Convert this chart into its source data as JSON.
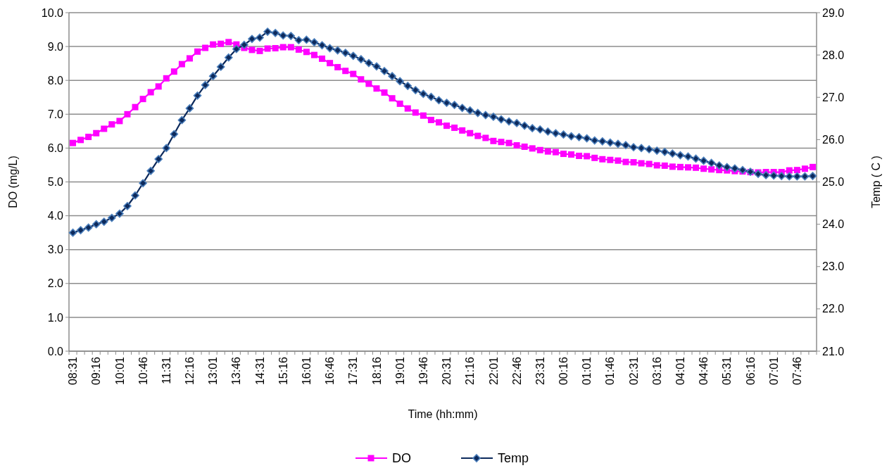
{
  "chart_data": {
    "type": "line",
    "xlabel": "Time (hh:mm)",
    "ylabel": "DO (mg/L)",
    "y2label": "Temp ( C )",
    "categories": [
      "08:31",
      null,
      null,
      "09:16",
      null,
      null,
      "10:01",
      null,
      null,
      "10:46",
      null,
      null,
      "11:31",
      null,
      null,
      "12:16",
      null,
      null,
      "13:01",
      null,
      null,
      "13:46",
      null,
      null,
      "14:31",
      null,
      null,
      "15:16",
      null,
      null,
      "16:01",
      null,
      null,
      "16:46",
      null,
      null,
      "17:31",
      null,
      null,
      "18:16",
      null,
      null,
      "19:01",
      null,
      null,
      "19:46",
      null,
      null,
      "20:31",
      null,
      null,
      "21:16",
      null,
      null,
      "22:01",
      null,
      null,
      "22:46",
      null,
      null,
      "23:31",
      null,
      null,
      "00:16",
      null,
      null,
      "01:01",
      null,
      null,
      "01:46",
      null,
      null,
      "02:31",
      null,
      null,
      "03:16",
      null,
      null,
      "04:01",
      null,
      null,
      "04:46",
      null,
      null,
      "05:31",
      null,
      null,
      "06:16",
      null,
      null,
      "07:01",
      null,
      null,
      "07:46",
      null,
      null
    ],
    "series": [
      {
        "name": "DO",
        "color": "#ff00ff",
        "marker": "square",
        "values": [
          6.15,
          6.24,
          6.33,
          6.44,
          6.57,
          6.7,
          6.8,
          7.0,
          7.21,
          7.45,
          7.65,
          7.82,
          8.06,
          8.26,
          8.48,
          8.65,
          8.85,
          8.96,
          9.06,
          9.08,
          9.13,
          9.06,
          8.96,
          8.9,
          8.87,
          8.94,
          8.95,
          8.98,
          8.98,
          8.91,
          8.84,
          8.75,
          8.64,
          8.51,
          8.39,
          8.28,
          8.19,
          8.03,
          7.9,
          7.76,
          7.64,
          7.47,
          7.31,
          7.17,
          7.05,
          6.96,
          6.83,
          6.76,
          6.66,
          6.6,
          6.52,
          6.44,
          6.36,
          6.3,
          6.21,
          6.18,
          6.15,
          6.08,
          6.04,
          5.99,
          5.94,
          5.9,
          5.88,
          5.83,
          5.81,
          5.77,
          5.76,
          5.71,
          5.67,
          5.65,
          5.63,
          5.59,
          5.58,
          5.55,
          5.53,
          5.49,
          5.48,
          5.45,
          5.44,
          5.43,
          5.42,
          5.39,
          5.37,
          5.35,
          5.34,
          5.32,
          5.31,
          5.29,
          5.28,
          5.29,
          5.29,
          5.29,
          5.34,
          5.35,
          5.39,
          5.44
        ]
      },
      {
        "name": "Temp",
        "color": "#0d2a5c",
        "marker": "diamond",
        "axis": "y2",
        "values": [
          23.8,
          23.86,
          23.92,
          24.0,
          24.06,
          24.15,
          24.25,
          24.43,
          24.68,
          24.97,
          25.26,
          25.54,
          25.8,
          26.13,
          26.46,
          26.74,
          27.04,
          27.29,
          27.5,
          27.72,
          27.94,
          28.14,
          28.24,
          28.38,
          28.41,
          28.55,
          28.52,
          28.46,
          28.45,
          28.35,
          28.36,
          28.3,
          28.23,
          28.16,
          28.11,
          28.05,
          27.98,
          27.9,
          27.81,
          27.73,
          27.62,
          27.5,
          27.38,
          27.27,
          27.17,
          27.08,
          27.01,
          26.93,
          26.87,
          26.82,
          26.75,
          26.69,
          26.63,
          26.58,
          26.54,
          26.48,
          26.43,
          26.39,
          26.33,
          26.27,
          26.24,
          26.19,
          26.15,
          26.12,
          26.08,
          26.06,
          26.03,
          25.98,
          25.96,
          25.93,
          25.9,
          25.87,
          25.82,
          25.8,
          25.77,
          25.74,
          25.71,
          25.67,
          25.63,
          25.6,
          25.55,
          25.5,
          25.45,
          25.39,
          25.35,
          25.32,
          25.28,
          25.24,
          25.19,
          25.16,
          25.15,
          25.14,
          25.13,
          25.13,
          25.13,
          25.14
        ]
      }
    ],
    "ylim": [
      0,
      10
    ],
    "yticks": [
      {
        "value": 0,
        "label": "0.0"
      },
      {
        "value": 1,
        "label": "1.0"
      },
      {
        "value": 2,
        "label": "2.0"
      },
      {
        "value": 3,
        "label": "3.0"
      },
      {
        "value": 4,
        "label": "4.0"
      },
      {
        "value": 5,
        "label": "5.0"
      },
      {
        "value": 6,
        "label": "6.0"
      },
      {
        "value": 7,
        "label": "7.0"
      },
      {
        "value": 8,
        "label": "8.0"
      },
      {
        "value": 9,
        "label": "9.0"
      },
      {
        "value": 10,
        "label": "10.0"
      }
    ],
    "y2lim": [
      21,
      29
    ],
    "y2ticks": [
      {
        "value": 21,
        "label": "21.0"
      },
      {
        "value": 22,
        "label": "22.0"
      },
      {
        "value": 23,
        "label": "23.0"
      },
      {
        "value": 24,
        "label": "24.0"
      },
      {
        "value": 25,
        "label": "25.0"
      },
      {
        "value": 26,
        "label": "26.0"
      },
      {
        "value": 27,
        "label": "27.0"
      },
      {
        "value": 28,
        "label": "28.0"
      },
      {
        "value": 29,
        "label": "29.0"
      }
    ],
    "grid": "y",
    "legend": "bottom",
    "line_style": "solid"
  }
}
